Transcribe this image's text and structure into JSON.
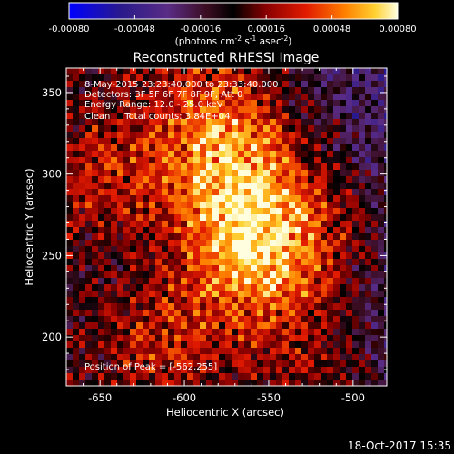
{
  "chart_data": {
    "type": "heatmap",
    "title": "Reconstructed RHESSI Image",
    "xlabel": "Heliocentric X (arcsec)",
    "ylabel": "Heliocentric Y (arcsec)",
    "xlim": [
      -670,
      -480
    ],
    "ylim": [
      170,
      365
    ],
    "xticks": [
      -650,
      -600,
      -550,
      -500
    ],
    "yticks": [
      200,
      250,
      300,
      350
    ],
    "colorbar": {
      "min": -0.0008,
      "max": 0.0008,
      "ticks": [
        "-0.00080",
        "-0.00048",
        "-0.00016",
        "0.00016",
        "0.00048",
        "0.00080"
      ],
      "units_main": "(photons cm",
      "units_sup1": "-2",
      "units_mid": " s",
      "units_sup2": "-1",
      "units_end": " asec",
      "units_sup3": "-2",
      "units_close": ")"
    },
    "annotations": {
      "time_range": "8-May-2015 23:23:40.000 to 23:33:40.000",
      "detectors": "Detectors: 3F 5F 6F 7F 8F 9F, Att 0",
      "energy": "Energy Range: 12.0 - 25.0 keV",
      "clean": "Clean     Total counts: 3.84E+04",
      "peak": "Position of Peak = [-562,255]"
    },
    "peak": [
      -562,
      255
    ],
    "sources": [
      {
        "x": -562,
        "y": 255,
        "intensity": 1.0
      },
      {
        "x": -572,
        "y": 312,
        "intensity": 0.75
      },
      {
        "x": -612,
        "y": 192,
        "intensity": 0.7
      },
      {
        "x": -645,
        "y": 300,
        "intensity": 0.6
      },
      {
        "x": -510,
        "y": 270,
        "intensity": 0.45
      }
    ]
  },
  "footer": {
    "date": "18-Oct-2017 15:35"
  }
}
